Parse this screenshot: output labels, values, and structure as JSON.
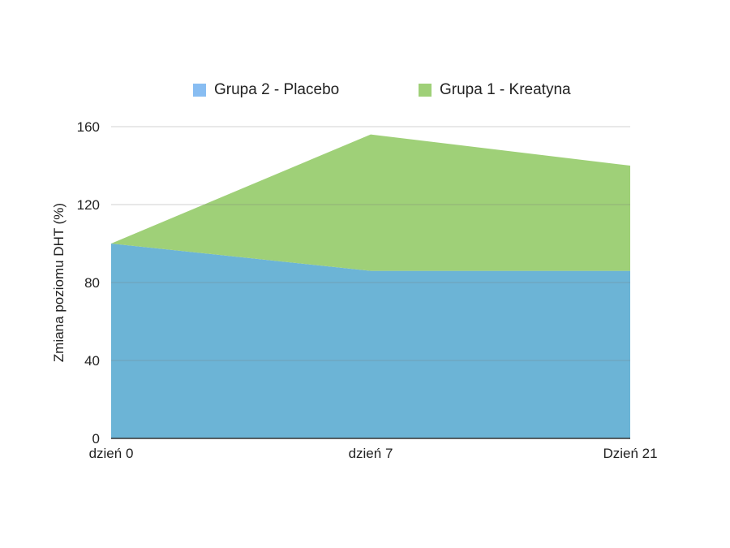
{
  "chart_data": {
    "type": "area",
    "stacked": true,
    "categories": [
      "dzień 0",
      "dzień 7",
      "Dzień 21"
    ],
    "ylabel": "Zmiana poziomu DHT (%)",
    "xlabel": "",
    "ylim": [
      0,
      160
    ],
    "yticks": [
      0,
      40,
      80,
      120,
      160
    ],
    "grid": true,
    "legend_position": "top",
    "series": [
      {
        "name": "Grupa 2 - Placebo",
        "values": [
          100,
          86,
          86
        ],
        "color": "#6cb4d6"
      },
      {
        "name": "Grupa 1 - Kreatyna",
        "values": [
          0,
          70,
          54
        ],
        "color": "#9fd078"
      }
    ],
    "legend": [
      {
        "label": "Grupa 2 - Placebo",
        "color": "#88bdf2"
      },
      {
        "label": "Grupa 1 - Kreatyna",
        "color": "#9fd078"
      }
    ]
  }
}
